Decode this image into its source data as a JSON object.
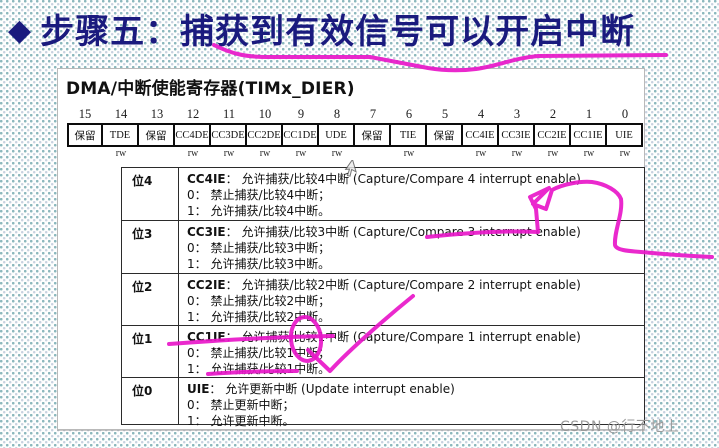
{
  "title": {
    "bullet": "◆",
    "text": "步骤五：捕获到有效信号可以开启中断"
  },
  "panel": {
    "register_title": "DMA/中断使能寄存器(TIMx_DIER)",
    "bits": [
      {
        "num": "15",
        "name": "保留",
        "access": ""
      },
      {
        "num": "14",
        "name": "TDE",
        "access": "rw"
      },
      {
        "num": "13",
        "name": "保留",
        "access": ""
      },
      {
        "num": "12",
        "name": "CC4DE",
        "access": "rw"
      },
      {
        "num": "11",
        "name": "CC3DE",
        "access": "rw"
      },
      {
        "num": "10",
        "name": "CC2DE",
        "access": "rw"
      },
      {
        "num": "9",
        "name": "CC1DE",
        "access": "rw"
      },
      {
        "num": "8",
        "name": "UDE",
        "access": "rw"
      },
      {
        "num": "7",
        "name": "保留",
        "access": ""
      },
      {
        "num": "6",
        "name": "TIE",
        "access": "rw"
      },
      {
        "num": "5",
        "name": "保留",
        "access": ""
      },
      {
        "num": "4",
        "name": "CC4IE",
        "access": "rw"
      },
      {
        "num": "3",
        "name": "CC3IE",
        "access": "rw"
      },
      {
        "num": "2",
        "name": "CC2IE",
        "access": "rw"
      },
      {
        "num": "1",
        "name": "CC1IE",
        "access": "rw"
      },
      {
        "num": "0",
        "name": "UIE",
        "access": "rw"
      }
    ],
    "desc_rows": [
      {
        "bit": "位4",
        "name": "CC4IE",
        "desc": "： 允许捕获/比较4中断 (Capture/Compare 4 interrupt enable)",
        "opt0": "0： 禁止捕获/比较4中断；",
        "opt1": "1： 允许捕获/比较4中断。"
      },
      {
        "bit": "位3",
        "name": "CC3IE",
        "desc": "： 允许捕获/比较3中断 (Capture/Compare 3 interrupt enable)",
        "opt0": "0： 禁止捕获/比较3中断；",
        "opt1": "1： 允许捕获/比较3中断。"
      },
      {
        "bit": "位2",
        "name": "CC2IE",
        "desc": "： 允许捕获/比较2中断 (Capture/Compare 2 interrupt enable)",
        "opt0": "0： 禁止捕获/比较2中断；",
        "opt1": "1： 允许捕获/比较2中断。"
      },
      {
        "bit": "位1",
        "name": "CC1IE",
        "desc": "： 允许捕获/比较1中断 (Capture/Compare 1 interrupt enable)",
        "opt0": "0： 禁止捕获/比较1中断；",
        "opt1": "1： 允许捕获/比较1中断。"
      },
      {
        "bit": "位0",
        "name": "UIE",
        "desc": "： 允许更新中断 (Update interrupt enable)",
        "opt0": "0： 禁止更新中断；",
        "opt1": "1： 允许更新中断。"
      }
    ]
  },
  "watermark": "CSDN @行不地上",
  "colors": {
    "annotation_ink": "#e817c9",
    "title_navy": "#1a1a7e",
    "watermark_gray": "#9a9a9a"
  }
}
